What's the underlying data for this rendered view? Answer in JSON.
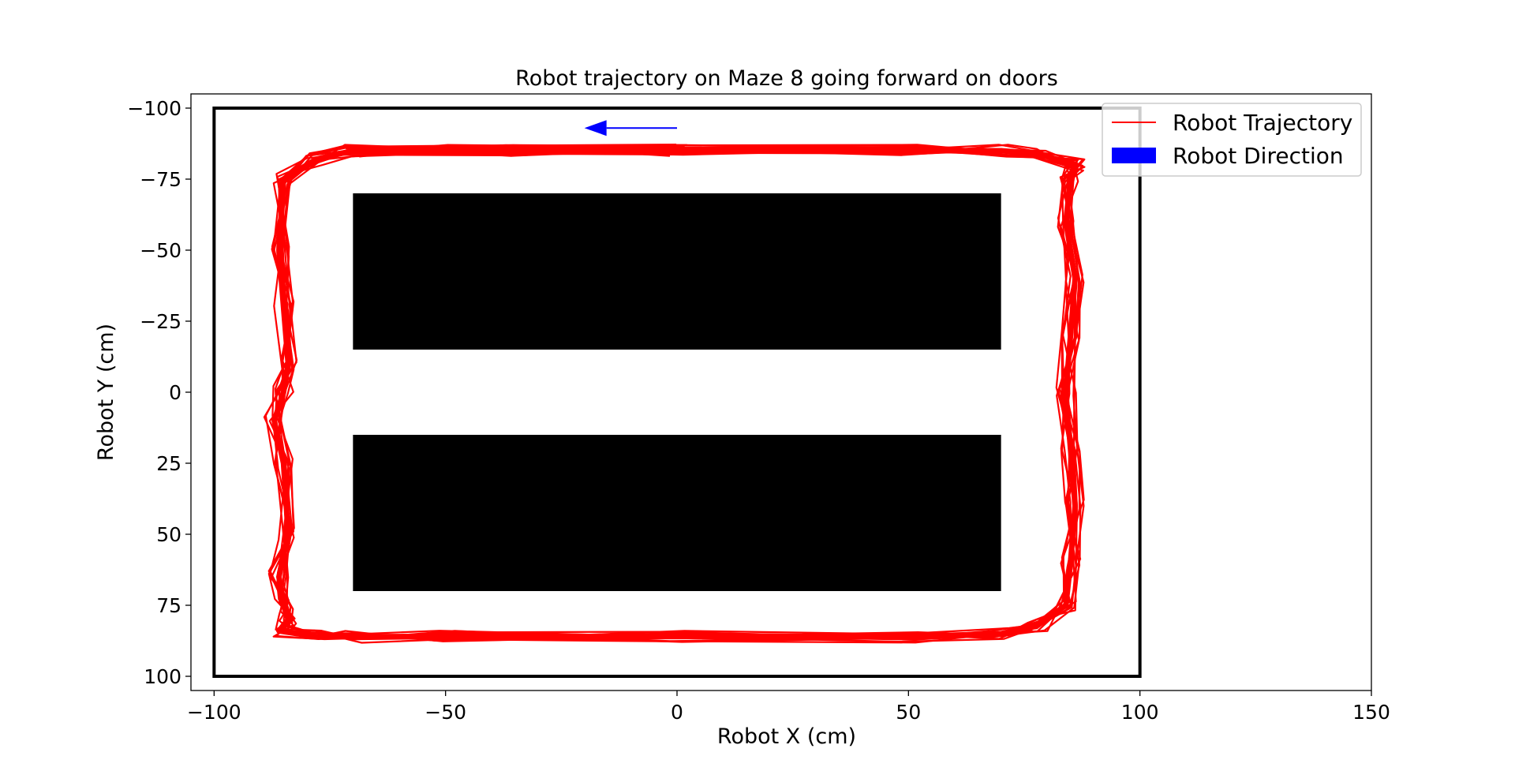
{
  "chart_data": {
    "type": "line",
    "title": "Robot trajectory on Maze 8 going forward on doors",
    "xlabel": "Robot X (cm)",
    "ylabel": "Robot Y (cm)",
    "xlim": [
      -105,
      150
    ],
    "ylim": [
      -105,
      105
    ],
    "y_inverted": true,
    "x_ticks": [
      -100,
      -50,
      0,
      50,
      100,
      150
    ],
    "y_ticks": [
      -100,
      -75,
      -50,
      -25,
      0,
      25,
      50,
      75,
      100
    ],
    "x_tick_labels": [
      "−100",
      "−50",
      "0",
      "50",
      "100",
      "150"
    ],
    "y_tick_labels": [
      "−100",
      "−75",
      "−50",
      "−25",
      "0",
      "25",
      "50",
      "75",
      "100"
    ],
    "grid": false,
    "legend_position": "top-right",
    "colors": {
      "trajectory": "#ff0000",
      "direction": "#0000ff",
      "obstacle": "#000000",
      "boundary": "#000000"
    },
    "boundary": {
      "x": [
        -100,
        100
      ],
      "y": [
        -100,
        100
      ]
    },
    "obstacles": [
      {
        "x": [
          -70,
          70
        ],
        "y": [
          -70,
          -15
        ]
      },
      {
        "x": [
          -70,
          70
        ],
        "y": [
          15,
          70
        ]
      }
    ],
    "series": [
      {
        "name": "Robot Trajectory",
        "type": "line",
        "x": [
          0,
          -35,
          -70,
          -78,
          -85,
          -86,
          -85,
          -84,
          -85,
          -87,
          -85,
          -84,
          -86,
          -85,
          -84,
          -86,
          -78,
          -70,
          -50,
          0,
          50,
          70,
          78,
          84,
          85,
          86,
          85,
          84,
          85,
          86,
          84,
          85,
          86,
          78,
          70,
          50,
          0,
          -50,
          -70
        ],
        "y": [
          -85,
          -85,
          -85,
          -82,
          -75,
          -50,
          -30,
          -10,
          0,
          10,
          25,
          50,
          65,
          75,
          80,
          84,
          86,
          86,
          86,
          86,
          86,
          85,
          82,
          75,
          60,
          40,
          20,
          0,
          -20,
          -40,
          -60,
          -75,
          -80,
          -84,
          -85,
          -85,
          -85,
          -85,
          -85
        ]
      }
    ],
    "direction_arrow": {
      "name": "Robot Direction",
      "x_start": 0,
      "y_start": -93,
      "x_end": -20,
      "y_end": -93
    }
  }
}
